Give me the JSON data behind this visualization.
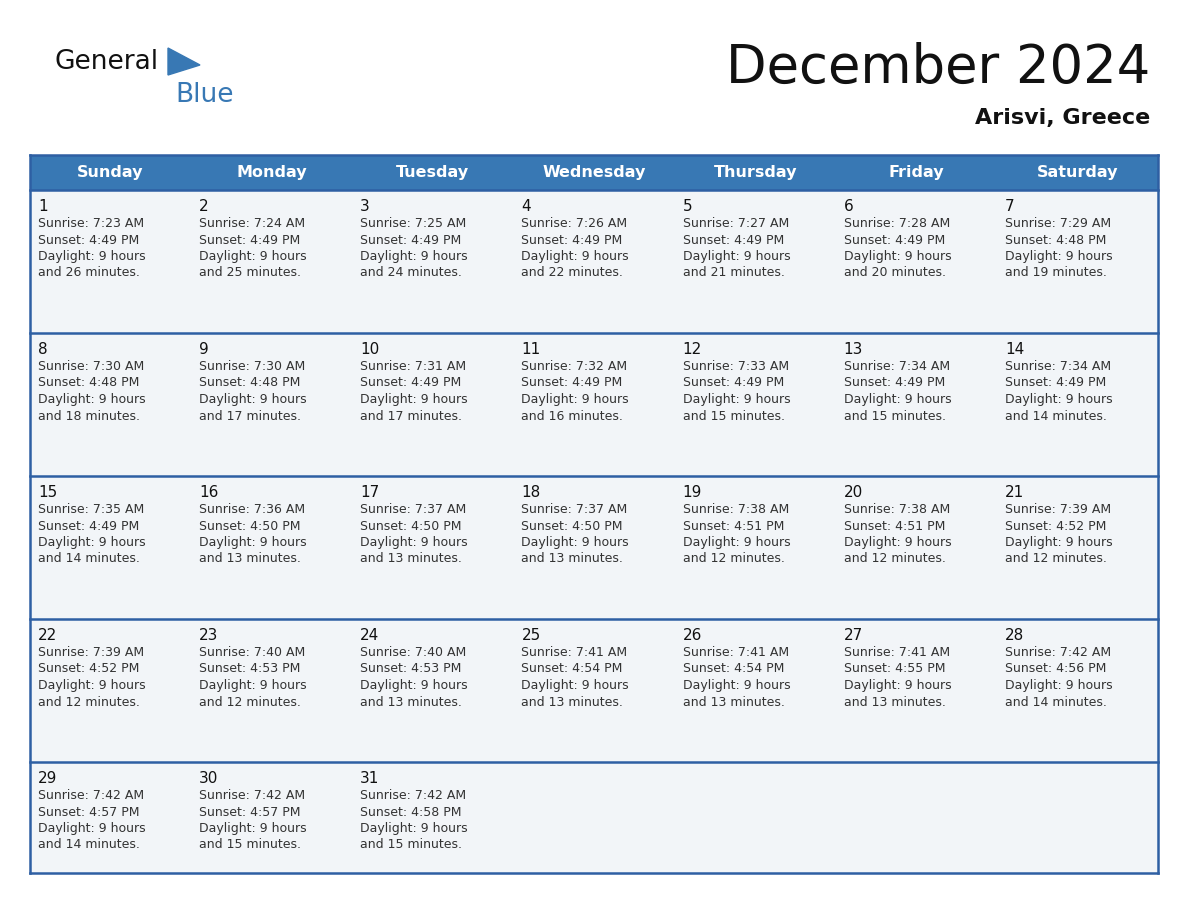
{
  "title": "December 2024",
  "subtitle": "Arisvi, Greece",
  "header_bg": "#3878b4",
  "header_text": "#ffffff",
  "cell_bg": "#f2f5f8",
  "border_color": "#2e5fa3",
  "text_color": "#333333",
  "day_num_color": "#111111",
  "days_of_week": [
    "Sunday",
    "Monday",
    "Tuesday",
    "Wednesday",
    "Thursday",
    "Friday",
    "Saturday"
  ],
  "calendar_data": [
    [
      {
        "day": 1,
        "sunrise": "7:23 AM",
        "sunset": "4:49 PM",
        "daylight": "9 hours and 26 minutes."
      },
      {
        "day": 2,
        "sunrise": "7:24 AM",
        "sunset": "4:49 PM",
        "daylight": "9 hours and 25 minutes."
      },
      {
        "day": 3,
        "sunrise": "7:25 AM",
        "sunset": "4:49 PM",
        "daylight": "9 hours and 24 minutes."
      },
      {
        "day": 4,
        "sunrise": "7:26 AM",
        "sunset": "4:49 PM",
        "daylight": "9 hours and 22 minutes."
      },
      {
        "day": 5,
        "sunrise": "7:27 AM",
        "sunset": "4:49 PM",
        "daylight": "9 hours and 21 minutes."
      },
      {
        "day": 6,
        "sunrise": "7:28 AM",
        "sunset": "4:49 PM",
        "daylight": "9 hours and 20 minutes."
      },
      {
        "day": 7,
        "sunrise": "7:29 AM",
        "sunset": "4:48 PM",
        "daylight": "9 hours and 19 minutes."
      }
    ],
    [
      {
        "day": 8,
        "sunrise": "7:30 AM",
        "sunset": "4:48 PM",
        "daylight": "9 hours and 18 minutes."
      },
      {
        "day": 9,
        "sunrise": "7:30 AM",
        "sunset": "4:48 PM",
        "daylight": "9 hours and 17 minutes."
      },
      {
        "day": 10,
        "sunrise": "7:31 AM",
        "sunset": "4:49 PM",
        "daylight": "9 hours and 17 minutes."
      },
      {
        "day": 11,
        "sunrise": "7:32 AM",
        "sunset": "4:49 PM",
        "daylight": "9 hours and 16 minutes."
      },
      {
        "day": 12,
        "sunrise": "7:33 AM",
        "sunset": "4:49 PM",
        "daylight": "9 hours and 15 minutes."
      },
      {
        "day": 13,
        "sunrise": "7:34 AM",
        "sunset": "4:49 PM",
        "daylight": "9 hours and 15 minutes."
      },
      {
        "day": 14,
        "sunrise": "7:34 AM",
        "sunset": "4:49 PM",
        "daylight": "9 hours and 14 minutes."
      }
    ],
    [
      {
        "day": 15,
        "sunrise": "7:35 AM",
        "sunset": "4:49 PM",
        "daylight": "9 hours and 14 minutes."
      },
      {
        "day": 16,
        "sunrise": "7:36 AM",
        "sunset": "4:50 PM",
        "daylight": "9 hours and 13 minutes."
      },
      {
        "day": 17,
        "sunrise": "7:37 AM",
        "sunset": "4:50 PM",
        "daylight": "9 hours and 13 minutes."
      },
      {
        "day": 18,
        "sunrise": "7:37 AM",
        "sunset": "4:50 PM",
        "daylight": "9 hours and 13 minutes."
      },
      {
        "day": 19,
        "sunrise": "7:38 AM",
        "sunset": "4:51 PM",
        "daylight": "9 hours and 12 minutes."
      },
      {
        "day": 20,
        "sunrise": "7:38 AM",
        "sunset": "4:51 PM",
        "daylight": "9 hours and 12 minutes."
      },
      {
        "day": 21,
        "sunrise": "7:39 AM",
        "sunset": "4:52 PM",
        "daylight": "9 hours and 12 minutes."
      }
    ],
    [
      {
        "day": 22,
        "sunrise": "7:39 AM",
        "sunset": "4:52 PM",
        "daylight": "9 hours and 12 minutes."
      },
      {
        "day": 23,
        "sunrise": "7:40 AM",
        "sunset": "4:53 PM",
        "daylight": "9 hours and 12 minutes."
      },
      {
        "day": 24,
        "sunrise": "7:40 AM",
        "sunset": "4:53 PM",
        "daylight": "9 hours and 13 minutes."
      },
      {
        "day": 25,
        "sunrise": "7:41 AM",
        "sunset": "4:54 PM",
        "daylight": "9 hours and 13 minutes."
      },
      {
        "day": 26,
        "sunrise": "7:41 AM",
        "sunset": "4:54 PM",
        "daylight": "9 hours and 13 minutes."
      },
      {
        "day": 27,
        "sunrise": "7:41 AM",
        "sunset": "4:55 PM",
        "daylight": "9 hours and 13 minutes."
      },
      {
        "day": 28,
        "sunrise": "7:42 AM",
        "sunset": "4:56 PM",
        "daylight": "9 hours and 14 minutes."
      }
    ],
    [
      {
        "day": 29,
        "sunrise": "7:42 AM",
        "sunset": "4:57 PM",
        "daylight": "9 hours and 14 minutes."
      },
      {
        "day": 30,
        "sunrise": "7:42 AM",
        "sunset": "4:57 PM",
        "daylight": "9 hours and 15 minutes."
      },
      {
        "day": 31,
        "sunrise": "7:42 AM",
        "sunset": "4:58 PM",
        "daylight": "9 hours and 15 minutes."
      },
      null,
      null,
      null,
      null
    ]
  ]
}
